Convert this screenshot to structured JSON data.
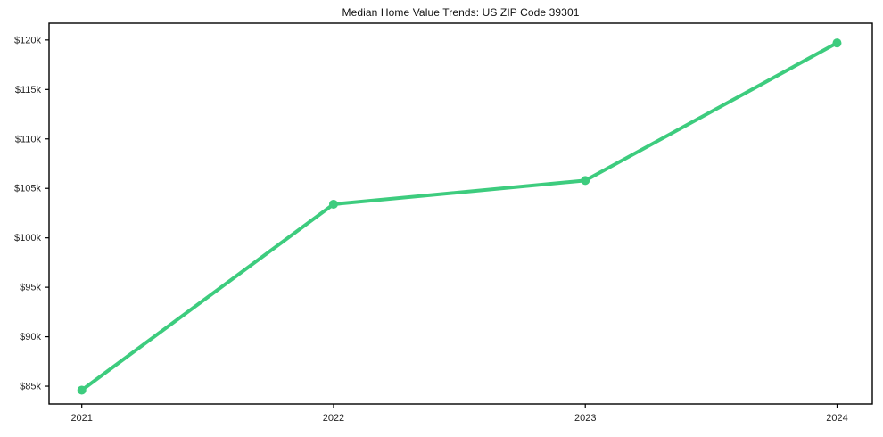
{
  "chart_data": {
    "type": "line",
    "title": "Median Home Value Trends: US ZIP Code 39301",
    "xlabel": "",
    "ylabel": "",
    "x": [
      2021,
      2022,
      2023,
      2024
    ],
    "x_tick_labels": [
      "2021",
      "2022",
      "2023",
      "2024"
    ],
    "series": [
      {
        "name": "median-home-value",
        "values": [
          84600,
          103400,
          105800,
          119700
        ]
      }
    ],
    "y_ticks": [
      {
        "value": 85000,
        "label": "$85k"
      },
      {
        "value": 90000,
        "label": "$90k"
      },
      {
        "value": 95000,
        "label": "$95k"
      },
      {
        "value": 100000,
        "label": "$100k"
      },
      {
        "value": 105000,
        "label": "$105k"
      },
      {
        "value": 110000,
        "label": "$110k"
      },
      {
        "value": 115000,
        "label": "$115k"
      },
      {
        "value": 120000,
        "label": "$120k"
      }
    ],
    "xlim": [
      2020.87,
      2024.14
    ],
    "ylim": [
      83200,
      121700
    ],
    "grid": false,
    "legend": false,
    "colors": {
      "line": "#3dcc7e",
      "marker": "#3dcc7e",
      "axis": "#000000",
      "tick_label": "#262626",
      "title": "#111111",
      "background": "#ffffff"
    }
  }
}
